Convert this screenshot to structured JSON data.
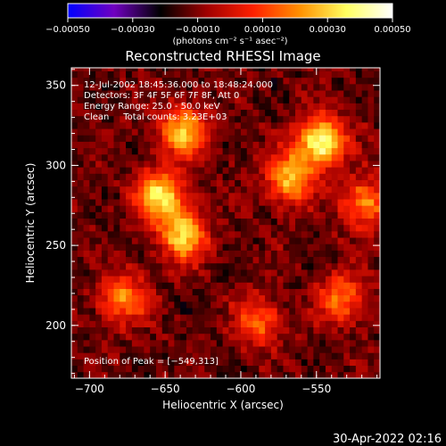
{
  "chart_data": {
    "type": "heatmap",
    "title": "Reconstructed RHESSI Image",
    "xlabel": "Heliocentric X (arcsec)",
    "ylabel": "Heliocentric Y (arcsec)",
    "xlim": [
      -712,
      -508
    ],
    "ylim": [
      167,
      361
    ],
    "xticks": [
      -700,
      -650,
      -600,
      -550
    ],
    "xtick_labels": [
      "−700",
      "−650",
      "−600",
      "−550"
    ],
    "yticks": [
      200,
      250,
      300,
      350
    ],
    "ytick_labels": [
      "200",
      "250",
      "300",
      "350"
    ],
    "colorbar": {
      "ticks": [
        -0.0005,
        -0.0003,
        -0.0001,
        0.0001,
        0.0003,
        0.0005
      ],
      "tick_labels": [
        "−0.00050",
        "−0.00030",
        "−0.00010",
        "0.00010",
        "0.00030",
        "0.00050"
      ],
      "unit_label": "(photons cm⁻² s⁻¹ asec⁻²)",
      "colors": [
        "#0000ff",
        "#7000c0",
        "#000000",
        "#a00000",
        "#ff2000",
        "#ff9000",
        "#ffff60",
        "#ffffff"
      ]
    },
    "annotations": [
      "12-Jul-2002 18:45:36.000 to 18:48:24.000",
      "Detectors: 3F 4F 5F 6F 7F 8F, Att 0",
      "Energy Range: 25.0 - 50.0 keV",
      "Clean     Total counts: 3.23E+03"
    ],
    "peak_label": "Position of Peak = [−549,313]",
    "peak": [
      -549,
      313
    ],
    "bright_regions": [
      {
        "x": -640,
        "y": 320,
        "level": 0.38
      },
      {
        "x": -655,
        "y": 280,
        "level": 0.42
      },
      {
        "x": -640,
        "y": 255,
        "level": 0.4
      },
      {
        "x": -680,
        "y": 215,
        "level": 0.3
      },
      {
        "x": -570,
        "y": 290,
        "level": 0.36
      },
      {
        "x": -549,
        "y": 313,
        "level": 0.5
      },
      {
        "x": -520,
        "y": 275,
        "level": 0.3
      },
      {
        "x": -535,
        "y": 215,
        "level": 0.28
      },
      {
        "x": -590,
        "y": 200,
        "level": 0.25
      }
    ]
  },
  "footer": {
    "timestamp": "30-Apr-2022 02:16"
  }
}
